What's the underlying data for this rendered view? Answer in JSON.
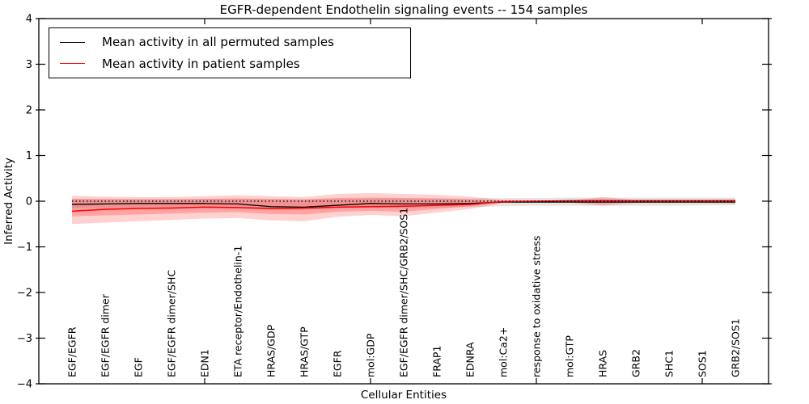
{
  "title": "EGFR-dependent Endothelin signaling events -- 154 samples",
  "axes": {
    "x_label": "Cellular Entities",
    "y_label": "Inferred Activity"
  },
  "chart_data": {
    "type": "line",
    "title": "EGFR-dependent Endothelin signaling events -- 154 samples",
    "xlabel": "Cellular Entities",
    "ylabel": "Inferred Activity",
    "xlim": [
      0,
      22
    ],
    "ylim": [
      -4,
      4
    ],
    "grid": false,
    "legend_position": "upper left",
    "zero_line": 0,
    "y_ticks": {
      "values": [
        4,
        3,
        2,
        1,
        0,
        -1,
        -2,
        -3,
        -4
      ],
      "labels": [
        "4",
        "3",
        "2",
        "1",
        "0",
        "−1",
        "−2",
        "−3",
        "−4"
      ]
    },
    "x_major_ticks": [
      5,
      10,
      15,
      20
    ],
    "categories": [
      "EGF/EGFR",
      "EGF/EGFR dimer",
      "EGF",
      "EGF/EGFR dimer/SHC",
      "EDN1",
      "ETA receptor/Endothelin-1",
      "HRAS/GDP",
      "HRAS/GTP",
      "EGFR",
      "mol:GDP",
      "EGF/EGFR dimer/SHC/GRB2/SOS1",
      "FRAP1",
      "EDNRA",
      "mol:Ca2+",
      "response to oxidative stress",
      "mol:GTP",
      "HRAS",
      "GRB2",
      "SHC1",
      "SOS1",
      "GRB2/SOS1"
    ],
    "series": [
      {
        "name": "Mean activity in all permuted samples",
        "color": "#000000",
        "values": [
          -0.07,
          -0.06,
          -0.05,
          -0.05,
          -0.05,
          -0.06,
          -0.12,
          -0.13,
          -0.09,
          -0.05,
          -0.06,
          -0.06,
          -0.05,
          -0.02,
          -0.02,
          -0.02,
          -0.02,
          -0.02,
          -0.02,
          -0.02,
          -0.02
        ]
      },
      {
        "name": "Mean activity in patient samples",
        "color": "#ff0000",
        "values": [
          -0.22,
          -0.18,
          -0.16,
          -0.15,
          -0.13,
          -0.14,
          -0.16,
          -0.15,
          -0.13,
          -0.12,
          -0.11,
          -0.09,
          -0.07,
          -0.01,
          0.0,
          0.01,
          0.01,
          0.01,
          0.01,
          0.01,
          0.01
        ]
      }
    ],
    "bands": [
      {
        "name": "permuted-range",
        "fill": "rgba(0,0,0,0.10)",
        "upper": [
          0.05,
          0.05,
          0.05,
          0.05,
          0.05,
          0.05,
          0.04,
          0.04,
          0.05,
          0.06,
          0.06,
          0.06,
          0.06,
          0.07,
          0.07,
          0.08,
          0.08,
          0.08,
          0.08,
          0.08,
          0.08
        ],
        "lower": [
          -0.16,
          -0.16,
          -0.15,
          -0.15,
          -0.15,
          -0.16,
          -0.19,
          -0.19,
          -0.16,
          -0.14,
          -0.15,
          -0.14,
          -0.13,
          -0.11,
          -0.1,
          -0.1,
          -0.1,
          -0.1,
          -0.1,
          -0.09,
          -0.09
        ]
      },
      {
        "name": "patient-outer",
        "fill": "rgba(255,0,0,0.18)",
        "upper": [
          0.12,
          0.1,
          0.09,
          0.09,
          0.11,
          0.13,
          0.11,
          0.09,
          0.16,
          0.18,
          0.16,
          0.14,
          0.1,
          0.03,
          0.02,
          0.02,
          0.09,
          0.03,
          0.03,
          0.03,
          0.04
        ],
        "lower": [
          -0.5,
          -0.47,
          -0.44,
          -0.41,
          -0.38,
          -0.37,
          -0.42,
          -0.44,
          -0.34,
          -0.3,
          -0.33,
          -0.25,
          -0.17,
          -0.04,
          -0.03,
          -0.03,
          -0.1,
          -0.04,
          -0.04,
          -0.04,
          -0.05
        ]
      },
      {
        "name": "patient-inner",
        "fill": "rgba(255,0,0,0.22)",
        "upper": [
          0.05,
          0.04,
          0.04,
          0.04,
          0.05,
          0.06,
          0.05,
          0.04,
          0.07,
          0.08,
          0.07,
          0.06,
          0.04,
          0.01,
          0.01,
          0.01,
          0.04,
          0.01,
          0.01,
          0.01,
          0.02
        ],
        "lower": [
          -0.33,
          -0.31,
          -0.29,
          -0.27,
          -0.25,
          -0.24,
          -0.28,
          -0.29,
          -0.23,
          -0.21,
          -0.23,
          -0.17,
          -0.11,
          -0.02,
          -0.01,
          -0.02,
          -0.05,
          -0.02,
          -0.02,
          -0.02,
          -0.02
        ]
      }
    ]
  },
  "legend": {
    "border_color": "#000000"
  }
}
